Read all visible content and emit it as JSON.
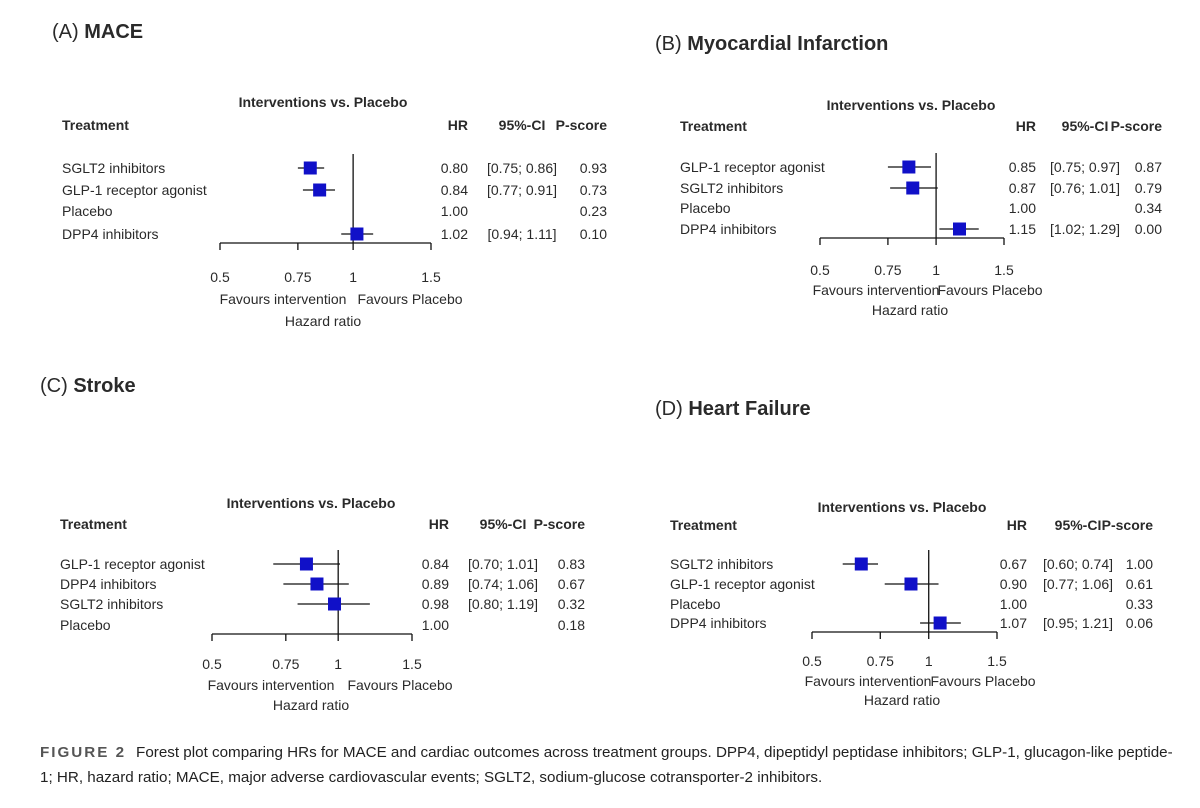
{
  "chart_data": [
    {
      "type": "forest",
      "panel_label": "(A)",
      "title": "MACE",
      "subtitle": "Interventions vs. Placebo",
      "columns": [
        "Treatment",
        "HR",
        "95%-CI",
        "P-score"
      ],
      "rows": [
        {
          "treatment": "SGLT2 inhibitors",
          "hr": 0.8,
          "ci_low": 0.75,
          "ci_high": 0.86,
          "hr_text": "0.80",
          "ci_text": "[0.75; 0.86]",
          "p_score": "0.93"
        },
        {
          "treatment": "GLP-1 receptor agonist",
          "hr": 0.84,
          "ci_low": 0.77,
          "ci_high": 0.91,
          "hr_text": "0.84",
          "ci_text": "[0.77; 0.91]",
          "p_score": "0.73"
        },
        {
          "treatment": "Placebo",
          "hr": 1.0,
          "ci_low": null,
          "ci_high": null,
          "hr_text": "1.00",
          "ci_text": "",
          "p_score": "0.23"
        },
        {
          "treatment": "DPP4 inhibitors",
          "hr": 1.02,
          "ci_low": 0.94,
          "ci_high": 1.11,
          "hr_text": "1.02",
          "ci_text": "[0.94; 1.11]",
          "p_score": "0.10"
        }
      ],
      "x_ticks": [
        0.5,
        0.75,
        1,
        1.5
      ],
      "x_tick_labels": [
        "0.5",
        "0.75",
        "1",
        "1.5"
      ],
      "x_scale": "log",
      "xlim": [
        0.5,
        1.5
      ],
      "favours_left": "Favours intervention",
      "favours_right": "Favours Placebo",
      "xlabel": "Hazard ratio"
    },
    {
      "type": "forest",
      "panel_label": "(B)",
      "title": "Myocardial Infarction",
      "subtitle": "Interventions vs. Placebo",
      "columns": [
        "Treatment",
        "HR",
        "95%-CI",
        "P-score"
      ],
      "rows": [
        {
          "treatment": "GLP-1 receptor agonist",
          "hr": 0.85,
          "ci_low": 0.75,
          "ci_high": 0.97,
          "hr_text": "0.85",
          "ci_text": "[0.75; 0.97]",
          "p_score": "0.87"
        },
        {
          "treatment": "SGLT2 inhibitors",
          "hr": 0.87,
          "ci_low": 0.76,
          "ci_high": 1.01,
          "hr_text": "0.87",
          "ci_text": "[0.76; 1.01]",
          "p_score": "0.79"
        },
        {
          "treatment": "Placebo",
          "hr": 1.0,
          "ci_low": null,
          "ci_high": null,
          "hr_text": "1.00",
          "ci_text": "",
          "p_score": "0.34"
        },
        {
          "treatment": "DPP4 inhibitors",
          "hr": 1.15,
          "ci_low": 1.02,
          "ci_high": 1.29,
          "hr_text": "1.15",
          "ci_text": "[1.02; 1.29]",
          "p_score": "0.00"
        }
      ],
      "x_ticks": [
        0.5,
        0.75,
        1,
        1.5
      ],
      "x_tick_labels": [
        "0.5",
        "0.75",
        "1",
        "1.5"
      ],
      "x_scale": "log",
      "xlim": [
        0.5,
        1.5
      ],
      "favours_left": "Favours intervention",
      "favours_right": "Favours Placebo",
      "xlabel": "Hazard ratio"
    },
    {
      "type": "forest",
      "panel_label": "(C)",
      "title": "Stroke",
      "subtitle": "Interventions vs. Placebo",
      "columns": [
        "Treatment",
        "HR",
        "95%-CI",
        "P-score"
      ],
      "rows": [
        {
          "treatment": "GLP-1 receptor agonist",
          "hr": 0.84,
          "ci_low": 0.7,
          "ci_high": 1.01,
          "hr_text": "0.84",
          "ci_text": "[0.70; 1.01]",
          "p_score": "0.83"
        },
        {
          "treatment": "DPP4 inhibitors",
          "hr": 0.89,
          "ci_low": 0.74,
          "ci_high": 1.06,
          "hr_text": "0.89",
          "ci_text": "[0.74; 1.06]",
          "p_score": "0.67"
        },
        {
          "treatment": "SGLT2 inhibitors",
          "hr": 0.98,
          "ci_low": 0.8,
          "ci_high": 1.19,
          "hr_text": "0.98",
          "ci_text": "[0.80; 1.19]",
          "p_score": "0.32"
        },
        {
          "treatment": "Placebo",
          "hr": 1.0,
          "ci_low": null,
          "ci_high": null,
          "hr_text": "1.00",
          "ci_text": "",
          "p_score": "0.18"
        }
      ],
      "x_ticks": [
        0.5,
        0.75,
        1,
        1.5
      ],
      "x_tick_labels": [
        "0.5",
        "0.75",
        "1",
        "1.5"
      ],
      "x_scale": "log",
      "xlim": [
        0.5,
        1.5
      ],
      "favours_left": "Favours intervention",
      "favours_right": "Favours Placebo",
      "xlabel": "Hazard ratio"
    },
    {
      "type": "forest",
      "panel_label": "(D)",
      "title": "Heart Failure",
      "subtitle": "Interventions vs. Placebo",
      "columns": [
        "Treatment",
        "HR",
        "95%-CI",
        "P-score"
      ],
      "rows": [
        {
          "treatment": "SGLT2 inhibitors",
          "hr": 0.67,
          "ci_low": 0.6,
          "ci_high": 0.74,
          "hr_text": "0.67",
          "ci_text": "[0.60; 0.74]",
          "p_score": "1.00"
        },
        {
          "treatment": "GLP-1 receptor agonist",
          "hr": 0.9,
          "ci_low": 0.77,
          "ci_high": 1.06,
          "hr_text": "0.90",
          "ci_text": "[0.77; 1.06]",
          "p_score": "0.61"
        },
        {
          "treatment": "Placebo",
          "hr": 1.0,
          "ci_low": null,
          "ci_high": null,
          "hr_text": "1.00",
          "ci_text": "",
          "p_score": "0.33"
        },
        {
          "treatment": "DPP4 inhibitors",
          "hr": 1.07,
          "ci_low": 0.95,
          "ci_high": 1.21,
          "hr_text": "1.07",
          "ci_text": "[0.95; 1.21]",
          "p_score": "0.06"
        }
      ],
      "x_ticks": [
        0.5,
        0.75,
        1,
        1.5
      ],
      "x_tick_labels": [
        "0.5",
        "0.75",
        "1",
        "1.5"
      ],
      "x_scale": "log",
      "xlim": [
        0.5,
        1.5
      ],
      "favours_left": "Favours intervention",
      "favours_right": "Favours Placebo",
      "xlabel": "Hazard ratio"
    }
  ],
  "caption": {
    "figure_label": "FIGURE 2",
    "text": "Forest plot comparing HRs for MACE and cardiac outcomes across treatment groups. DPP4, dipeptidyl peptidase inhibitors; GLP-1, glucagon-like peptide-1; HR, hazard ratio; MACE, major adverse cardiovascular events; SGLT2, sodium-glucose cotransporter-2 inhibitors."
  },
  "colors": {
    "marker": "#1010c8",
    "line": "#111111",
    "text": "#2a2a2a"
  }
}
